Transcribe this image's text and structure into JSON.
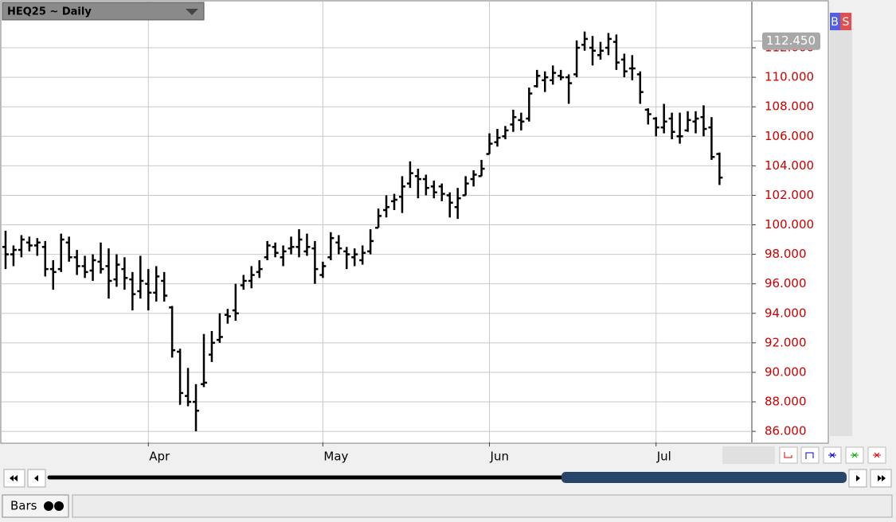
{
  "chart_data": {
    "type": "ohlc",
    "title": "HEQ25 ~ Daily",
    "categories": [
      null,
      null,
      null,
      null,
      null,
      null,
      null,
      null,
      null,
      null,
      null,
      null,
      null,
      null,
      null,
      null,
      null,
      null,
      "Apr",
      null,
      null,
      null,
      null,
      null,
      null,
      null,
      null,
      null,
      null,
      null,
      null,
      null,
      null,
      null,
      null,
      null,
      null,
      null,
      null,
      null,
      "May",
      null,
      null,
      null,
      null,
      null,
      null,
      null,
      null,
      null,
      null,
      null,
      null,
      null,
      null,
      null,
      null,
      null,
      null,
      null,
      null,
      "Jun",
      null,
      null,
      null,
      null,
      null,
      null,
      null,
      null,
      null,
      null,
      null,
      null,
      null,
      null,
      null,
      null,
      null,
      null,
      null,
      null,
      "Jul",
      null,
      null,
      null,
      null,
      null,
      null,
      null,
      null
    ],
    "open": [
      98.5,
      98.0,
      98.3,
      98.8,
      98.6,
      98.5,
      97.0,
      97.0,
      98.8,
      97.8,
      97.2,
      96.9,
      97.5,
      97.2,
      96.3,
      97.0,
      96.3,
      95.5,
      96.0,
      95.4,
      96.2,
      94.4,
      91.4,
      88.4,
      88.0,
      89.2,
      91.2,
      92.2,
      93.9,
      94.2,
      95.9,
      96.2,
      96.8,
      97.8,
      98.5,
      97.8,
      98.4,
      98.5,
      98.2,
      98.4,
      96.6,
      97.8,
      98.8,
      98.2,
      97.8,
      97.6,
      98.2,
      99.8,
      101.0,
      101.6,
      101.9,
      102.8,
      103.3,
      103.1,
      102.6,
      102.6,
      102.0,
      101.2,
      102.0,
      103.1,
      103.3,
      104.8,
      105.6,
      106.0,
      106.8,
      107.1,
      107.2,
      109.4,
      109.8,
      109.8,
      110.1,
      110.0,
      110.2,
      112.2,
      112.0,
      111.5,
      112.0,
      112.4,
      111.2,
      110.6,
      110.2,
      107.8,
      107.2,
      106.6,
      107.2,
      106.0,
      106.4,
      107.0,
      107.3,
      106.6,
      104.8
    ],
    "high": [
      99.6,
      98.6,
      99.3,
      99.2,
      99.1,
      98.9,
      97.6,
      99.4,
      99.2,
      98.3,
      97.9,
      98.0,
      98.8,
      98.4,
      98.0,
      97.8,
      96.8,
      97.9,
      97.0,
      97.2,
      96.8,
      94.5,
      91.6,
      90.3,
      89.2,
      92.6,
      92.8,
      94.0,
      94.3,
      96.0,
      96.6,
      97.2,
      97.6,
      98.9,
      98.8,
      98.6,
      99.2,
      99.7,
      99.4,
      98.9,
      97.5,
      99.5,
      99.3,
      98.5,
      98.4,
      98.6,
      99.7,
      101.1,
      102.0,
      102.1,
      103.3,
      104.3,
      103.8,
      103.4,
      103.0,
      102.8,
      102.2,
      102.5,
      103.3,
      103.7,
      104.4,
      106.2,
      106.5,
      106.7,
      107.8,
      107.6,
      109.3,
      110.5,
      110.4,
      110.8,
      110.5,
      110.2,
      112.5,
      113.1,
      112.8,
      112.4,
      113.0,
      112.9,
      111.6,
      111.5,
      110.4,
      107.9,
      107.3,
      108.2,
      107.6,
      107.6,
      107.7,
      107.7,
      108.1,
      107.3,
      104.9
    ],
    "low": [
      97.0,
      97.2,
      97.8,
      98.2,
      97.9,
      96.5,
      95.6,
      96.8,
      97.5,
      96.6,
      96.4,
      96.2,
      96.7,
      95.0,
      95.8,
      95.6,
      94.2,
      95.0,
      94.2,
      94.8,
      94.8,
      91.0,
      87.8,
      87.7,
      86.0,
      89.0,
      90.7,
      92.0,
      93.3,
      93.5,
      95.6,
      95.7,
      96.4,
      97.6,
      97.8,
      97.2,
      98.0,
      97.8,
      97.9,
      96.0,
      96.4,
      97.6,
      98.0,
      97.0,
      97.2,
      97.3,
      98.0,
      99.8,
      100.5,
      101.0,
      100.8,
      102.5,
      101.8,
      102.0,
      101.8,
      101.6,
      100.5,
      100.4,
      102.0,
      102.6,
      103.3,
      104.8,
      105.3,
      105.8,
      106.3,
      106.4,
      107.0,
      109.3,
      109.0,
      109.5,
      109.8,
      108.2,
      110.0,
      111.8,
      110.8,
      111.2,
      111.5,
      110.5,
      110.0,
      109.8,
      108.2,
      106.8,
      106.0,
      106.2,
      105.8,
      105.5,
      106.3,
      106.2,
      106.0,
      104.4,
      102.7
    ],
    "close": [
      98.0,
      98.3,
      99.0,
      98.6,
      98.8,
      97.0,
      96.8,
      99.0,
      97.8,
      97.2,
      96.8,
      97.6,
      97.0,
      96.2,
      97.3,
      96.4,
      95.3,
      96.2,
      95.4,
      96.5,
      95.2,
      91.5,
      88.6,
      88.0,
      87.4,
      89.3,
      92.0,
      92.4,
      93.8,
      94.0,
      96.2,
      96.6,
      97.0,
      98.6,
      98.1,
      98.2,
      98.5,
      99.0,
      98.5,
      97.0,
      97.2,
      99.1,
      98.4,
      98.0,
      98.0,
      98.1,
      98.9,
      100.6,
      101.2,
      101.7,
      102.6,
      103.5,
      103.1,
      102.5,
      102.2,
      102.1,
      101.5,
      101.8,
      102.8,
      103.4,
      103.8,
      105.5,
      105.9,
      106.4,
      107.3,
      107.0,
      108.9,
      110.1,
      110.0,
      110.3,
      110.0,
      109.6,
      112.0,
      112.6,
      111.8,
      111.8,
      112.6,
      111.0,
      110.4,
      110.6,
      109.0,
      107.5,
      106.6,
      107.0,
      106.3,
      106.0,
      107.1,
      107.2,
      106.5,
      104.6,
      103.2
    ],
    "color": "#000000",
    "ylim": [
      85.25,
      115.13
    ],
    "yticks": [
      {
        "value": 86,
        "label": "86.000"
      },
      {
        "value": 88,
        "label": "88.000"
      },
      {
        "value": 90,
        "label": "90.000"
      },
      {
        "value": 92,
        "label": "92.000"
      },
      {
        "value": 94,
        "label": "94.000"
      },
      {
        "value": 96,
        "label": "96.000"
      },
      {
        "value": 98,
        "label": "98.000"
      },
      {
        "value": 100,
        "label": "100.000"
      },
      {
        "value": 102,
        "label": "102.000"
      },
      {
        "value": 104,
        "label": "104.000"
      },
      {
        "value": 106,
        "label": "106.000"
      },
      {
        "value": 108,
        "label": "108.000"
      },
      {
        "value": 110,
        "label": "110.000"
      },
      {
        "value": 112,
        "label": "112.000"
      }
    ],
    "price_tag": {
      "value": 112.45,
      "label": "112.450"
    },
    "grid": true
  },
  "ui": {
    "buy": "B",
    "sell": "S",
    "tab": "Bars"
  }
}
